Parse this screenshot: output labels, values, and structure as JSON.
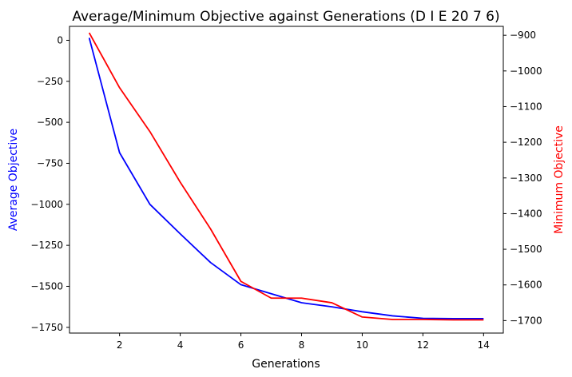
{
  "chart_data": {
    "type": "line",
    "title": "Average/Minimum Objective against Generations (D I E 20 7 6)",
    "xlabel": "Generations",
    "ylabel_left": "Average Objective",
    "ylabel_right": "Minimum Objective",
    "xlim": [
      0.35,
      14.65
    ],
    "ylim_left": [
      -1785,
      85
    ],
    "ylim_right": [
      -1735,
      -875
    ],
    "x_ticks": [
      2,
      4,
      6,
      8,
      10,
      12,
      14
    ],
    "y_left_ticks": [
      0,
      -250,
      -500,
      -750,
      -1000,
      -1250,
      -1500,
      -1750
    ],
    "y_right_ticks": [
      -900,
      -1000,
      -1100,
      -1200,
      -1300,
      -1400,
      -1500,
      -1600,
      -1700
    ],
    "tick_labels": {
      "x": [
        "2",
        "4",
        "6",
        "8",
        "10",
        "12",
        "14"
      ],
      "y_left": [
        "0",
        "−250",
        "−500",
        "−750",
        "−1000",
        "−1250",
        "−1500",
        "−1750"
      ],
      "y_right": [
        "−900",
        "−1000",
        "−1100",
        "−1200",
        "−1300",
        "−1400",
        "−1500",
        "−1600",
        "−1700"
      ]
    },
    "grid": false,
    "series": [
      {
        "axis": "left",
        "color": "#0000ff",
        "x": [
          1,
          2,
          3,
          4,
          5,
          6,
          7,
          8,
          9,
          10,
          11,
          12,
          13,
          14
        ],
        "values": [
          15,
          -685,
          -1000,
          -1180,
          -1355,
          -1490,
          -1545,
          -1600,
          -1625,
          -1655,
          -1680,
          -1695,
          -1697,
          -1697
        ]
      },
      {
        "axis": "right",
        "color": "#ff0000",
        "x": [
          1,
          2,
          3,
          4,
          5,
          6,
          7,
          8,
          9,
          10,
          11,
          12,
          13,
          14
        ],
        "values": [
          -893,
          -1047,
          -1170,
          -1312,
          -1443,
          -1590,
          -1637,
          -1637,
          -1650,
          -1690,
          -1697,
          -1697,
          -1698,
          -1698
        ]
      }
    ]
  }
}
